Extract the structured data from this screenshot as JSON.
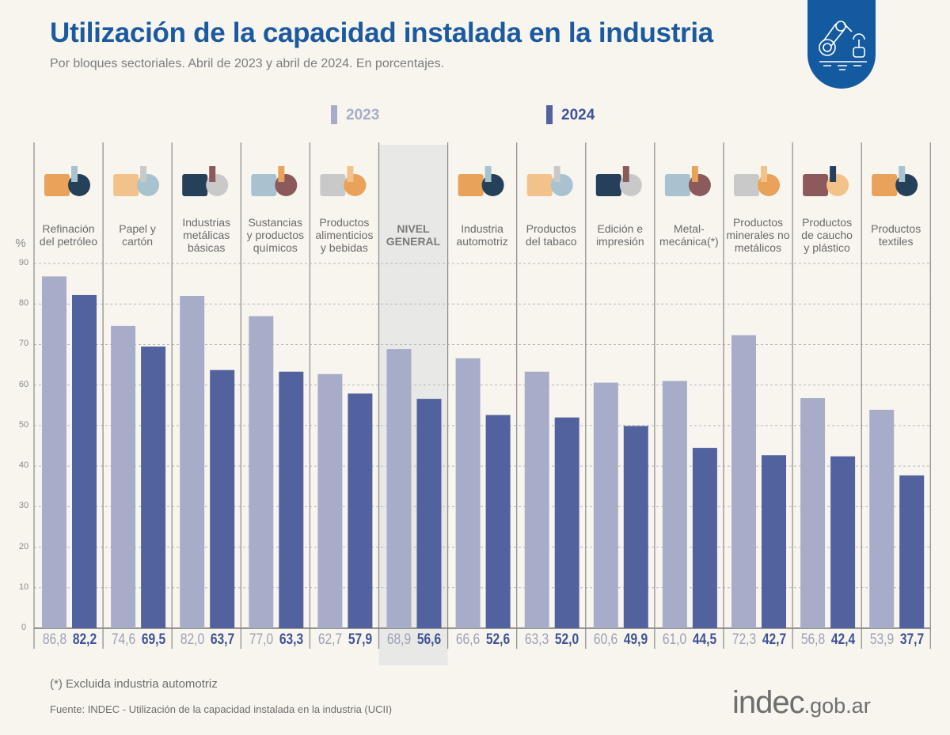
{
  "header": {
    "title": "Utilización de la capacidad instalada en la industria",
    "subtitle": "Por bloques sectoriales. Abril de 2023 y abril de 2024. En porcentajes."
  },
  "footer": {
    "note": "(*) Excluida industria automotriz",
    "source": "Fuente: INDEC - Utilización de la capacidad instalada en la industria (UCII)",
    "brand_main": "indec",
    "brand_suffix": ".gob.ar"
  },
  "colors": {
    "series_2023": "#a7adc9",
    "series_2024": "#51629e",
    "highlight_bg": "#e8e8e6",
    "title": "#1c5aa0"
  },
  "chart_data": {
    "type": "bar",
    "ylabel": "%",
    "ylim": [
      0,
      90
    ],
    "yticks": [
      0,
      10,
      20,
      30,
      40,
      50,
      60,
      70,
      80,
      90
    ],
    "grid": true,
    "legend_placement": "top",
    "highlighted_category": "NIVEL\nGENERAL",
    "categories": [
      "Refinación\ndel petróleo",
      "Papel y\ncartón",
      "Industrias\nmetálicas\nbásicas",
      "Sustancias\ny productos\nquímicos",
      "Productos\nalimenticios\ny bebidas",
      "NIVEL\nGENERAL",
      "Industria\nautomotriz",
      "Productos\ndel tabaco",
      "Edición e\nimpresión",
      "Metal-\nmecánica(*)",
      "Productos\nminerales no\nmetálicos",
      "Productos\nde caucho\ny plástico",
      "Productos\ntextiles"
    ],
    "icons": [
      "refinery-icon",
      "paper-box-icon",
      "metal-saw-icon",
      "chemical-flask-icon",
      "food-bottle-bread-icon",
      "none",
      "car-icon",
      "pipe-cigarette-icon",
      "printing-roll-icon",
      "gears-icon",
      "mineral-mixer-icon",
      "tire-bottle-icon",
      "textile-spool-icon"
    ],
    "series": [
      {
        "name": "2023",
        "values": [
          86.8,
          74.6,
          82.0,
          77.0,
          62.7,
          68.9,
          66.6,
          63.3,
          60.6,
          61.0,
          72.3,
          56.8,
          53.9
        ],
        "labels": [
          "86,8",
          "74,6",
          "82,0",
          "77,0",
          "62,7",
          "68,9",
          "66,6",
          "63,3",
          "60,6",
          "61,0",
          "72,3",
          "56,8",
          "53,9"
        ]
      },
      {
        "name": "2024",
        "values": [
          82.2,
          69.5,
          63.7,
          63.3,
          57.9,
          56.6,
          52.6,
          52.0,
          49.9,
          44.5,
          42.7,
          42.4,
          37.7
        ],
        "labels": [
          "82,2",
          "69,5",
          "63,7",
          "63,3",
          "57,9",
          "56,6",
          "52,6",
          "52,0",
          "49,9",
          "44,5",
          "42,7",
          "42,4",
          "37,7"
        ]
      }
    ]
  }
}
